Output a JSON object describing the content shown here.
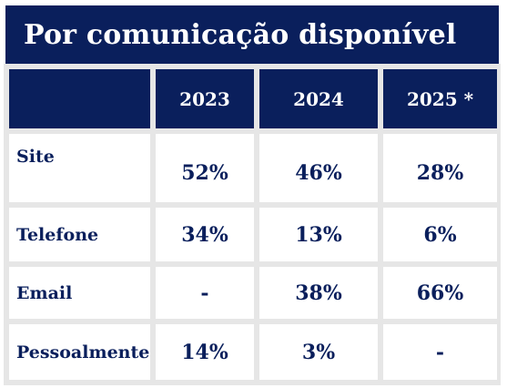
{
  "title": "Por comunicação disponível",
  "chart_data": {
    "type": "table",
    "columns": [
      "",
      "2023",
      "2024",
      "2025 *"
    ],
    "rows": [
      {
        "label": "Site",
        "values": [
          "52%",
          "46%",
          "28%"
        ]
      },
      {
        "label": "Telefone",
        "values": [
          "34%",
          "13%",
          "6%"
        ]
      },
      {
        "label": "Email",
        "values": [
          "-",
          "38%",
          "66%"
        ]
      },
      {
        "label": "Pessoalmente",
        "values": [
          "14%",
          "3%",
          "-"
        ]
      }
    ]
  },
  "colors": {
    "header_bg": "#0a1f5c",
    "header_text": "#ffffff",
    "body_text": "#0a1f5c",
    "grid": "#e6e6e6"
  }
}
